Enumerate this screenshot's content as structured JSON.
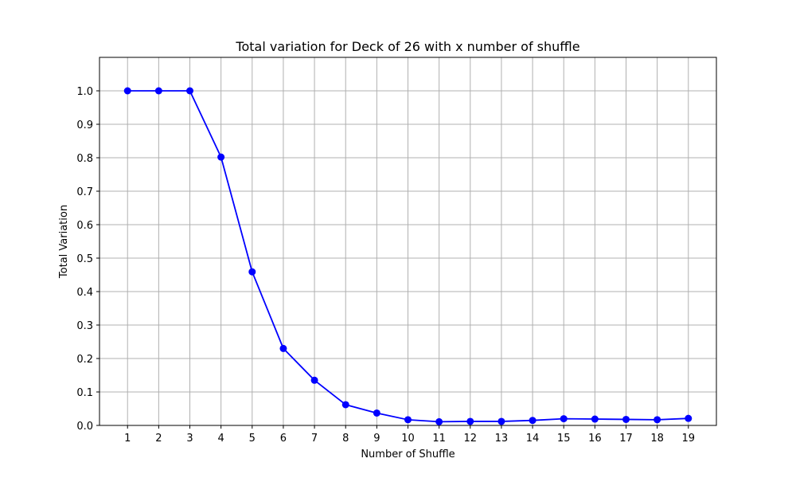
{
  "chart_data": {
    "type": "line",
    "title": "Total variation for Deck of 26 with x number of shuffle",
    "xlabel": "Number of Shuffle",
    "ylabel": "Total Variation",
    "x": [
      1,
      2,
      3,
      4,
      5,
      6,
      7,
      8,
      9,
      10,
      11,
      12,
      13,
      14,
      15,
      16,
      17,
      18,
      19
    ],
    "series": [
      {
        "values": [
          1.0,
          1.0,
          1.0,
          0.802,
          0.459,
          0.23,
          0.135,
          0.062,
          0.037,
          0.017,
          0.011,
          0.012,
          0.012,
          0.015,
          0.02,
          0.019,
          0.018,
          0.017,
          0.021
        ],
        "color": "#0000ff",
        "marker": "circle"
      }
    ],
    "xlim": [
      0.1,
      19.9
    ],
    "ylim": [
      0.0,
      1.1
    ],
    "xticks": [
      "1",
      "2",
      "3",
      "4",
      "5",
      "6",
      "7",
      "8",
      "9",
      "10",
      "11",
      "12",
      "13",
      "14",
      "15",
      "16",
      "17",
      "18",
      "19"
    ],
    "yticks": [
      "0.0",
      "0.1",
      "0.2",
      "0.3",
      "0.4",
      "0.5",
      "0.6",
      "0.7",
      "0.8",
      "0.9",
      "1.0"
    ],
    "grid": true,
    "grid_color": "#b0b0b0",
    "legend": "none"
  }
}
